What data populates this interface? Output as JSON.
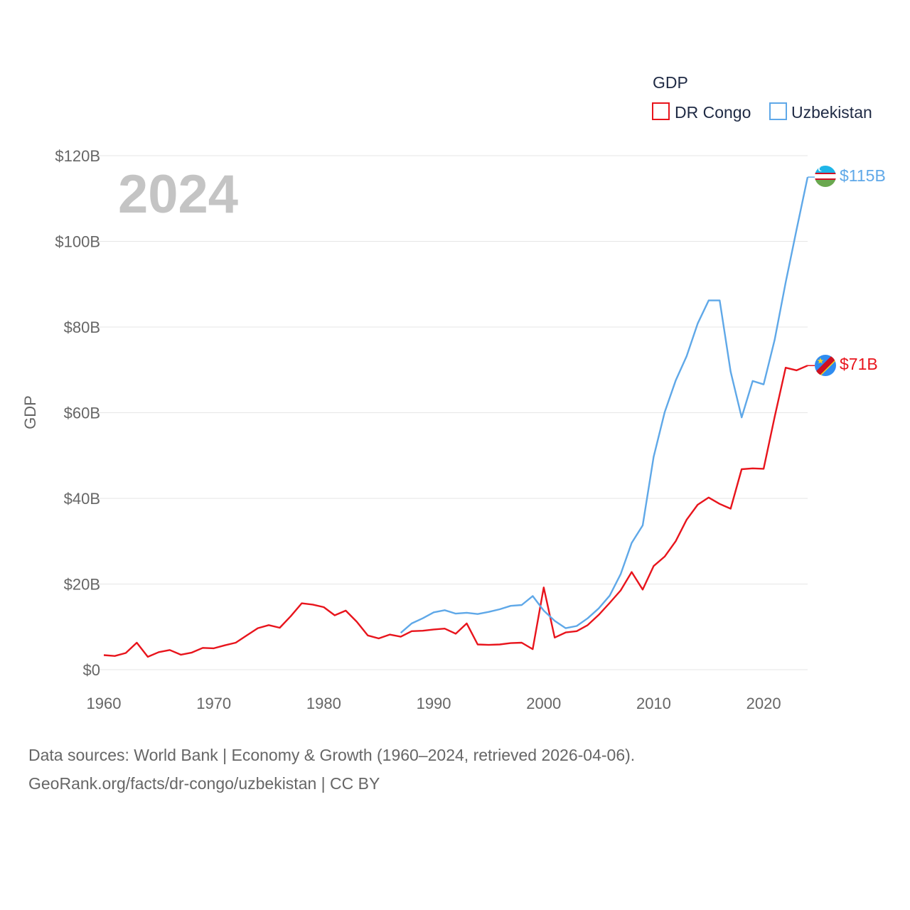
{
  "colors": {
    "dr_congo": "#e8141c",
    "uzbekistan": "#5fa8e8",
    "grid": "#e6e6e6",
    "tick": "#666666",
    "watermark": "#c4c4c4"
  },
  "watermark_year": "2024",
  "legend": {
    "title": "GDP",
    "items": [
      {
        "name": "DR Congo",
        "color": "#e8141c",
        "icon": "legend-square-icon"
      },
      {
        "name": "Uzbekistan",
        "color": "#5fa8e8",
        "icon": "legend-square-icon"
      }
    ]
  },
  "end_labels": {
    "dr_congo": "$71B",
    "uzbekistan": "$115B"
  },
  "flags": {
    "dr_congo": "dr-congo-flag-icon",
    "uzbekistan": "uzbekistan-flag-icon"
  },
  "footer": {
    "line1": "Data sources: World Bank | Economy & Growth (1960–2024, retrieved 2026-04-06).",
    "line2": "GeoRank.org/facts/dr-congo/uzbekistan | CC BY"
  },
  "chart_data": {
    "type": "line",
    "title": "",
    "xlabel": "",
    "ylabel": "GDP",
    "xlim": [
      1960,
      2024
    ],
    "ylim": [
      0,
      120
    ],
    "y_unit": "billion USD",
    "x_ticks": [
      1960,
      1970,
      1980,
      1990,
      2000,
      2010,
      2020
    ],
    "x_tick_labels": [
      "1960",
      "1970",
      "1980",
      "1990",
      "2000",
      "2010",
      "2020"
    ],
    "y_ticks": [
      0,
      20,
      40,
      60,
      80,
      100,
      120
    ],
    "y_tick_labels": [
      "$0",
      "$20B",
      "$40B",
      "$60B",
      "$80B",
      "$100B",
      "$120B"
    ],
    "grid": true,
    "legend_position": "top-right",
    "series": [
      {
        "name": "DR Congo",
        "key": "dr_congo",
        "x": [
          1960,
          1961,
          1962,
          1963,
          1964,
          1965,
          1966,
          1967,
          1968,
          1969,
          1970,
          1971,
          1972,
          1973,
          1974,
          1975,
          1976,
          1977,
          1978,
          1979,
          1980,
          1981,
          1982,
          1983,
          1984,
          1985,
          1986,
          1987,
          1988,
          1989,
          1990,
          1991,
          1992,
          1993,
          1994,
          1995,
          1996,
          1997,
          1998,
          1999,
          2000,
          2001,
          2002,
          2003,
          2004,
          2005,
          2006,
          2007,
          2008,
          2009,
          2010,
          2011,
          2012,
          2013,
          2014,
          2015,
          2016,
          2017,
          2018,
          2019,
          2020,
          2021,
          2022,
          2023,
          2024
        ],
        "values": [
          3.4,
          3.2,
          3.9,
          6.3,
          3.0,
          4.1,
          4.6,
          3.5,
          4.0,
          5.1,
          5.0,
          5.7,
          6.3,
          8.0,
          9.7,
          10.4,
          9.8,
          12.5,
          15.5,
          15.2,
          14.6,
          12.7,
          13.8,
          11.2,
          8.0,
          7.3,
          8.2,
          7.7,
          9.0,
          9.1,
          9.4,
          9.6,
          8.4,
          10.8,
          5.9,
          5.8,
          5.9,
          6.2,
          6.3,
          4.8,
          19.2,
          7.5,
          8.7,
          9.0,
          10.4,
          12.8,
          15.6,
          18.5,
          22.8,
          18.7,
          24.2,
          26.4,
          30.0,
          35.0,
          38.5,
          40.2,
          38.7,
          37.6,
          46.8,
          47.0,
          46.9,
          59.0,
          70.5,
          69.9,
          71.0
        ]
      },
      {
        "name": "Uzbekistan",
        "key": "uzbekistan",
        "x": [
          1987,
          1988,
          1989,
          1990,
          1991,
          1992,
          1993,
          1994,
          1995,
          1996,
          1997,
          1998,
          1999,
          2000,
          2001,
          2002,
          2003,
          2004,
          2005,
          2006,
          2007,
          2008,
          2009,
          2010,
          2011,
          2012,
          2013,
          2014,
          2015,
          2016,
          2017,
          2018,
          2019,
          2020,
          2021,
          2022,
          2023,
          2024
        ],
        "values": [
          8.6,
          10.8,
          12.0,
          13.4,
          13.9,
          13.1,
          13.3,
          13.0,
          13.5,
          14.1,
          14.9,
          15.1,
          17.2,
          13.8,
          11.4,
          9.7,
          10.2,
          12.0,
          14.3,
          17.3,
          22.3,
          29.6,
          33.7,
          49.7,
          60.1,
          67.5,
          73.2,
          80.8,
          86.2,
          86.2,
          69.6,
          58.9,
          67.4,
          66.6,
          77.0,
          90.4,
          102.8,
          115.0
        ]
      }
    ]
  }
}
